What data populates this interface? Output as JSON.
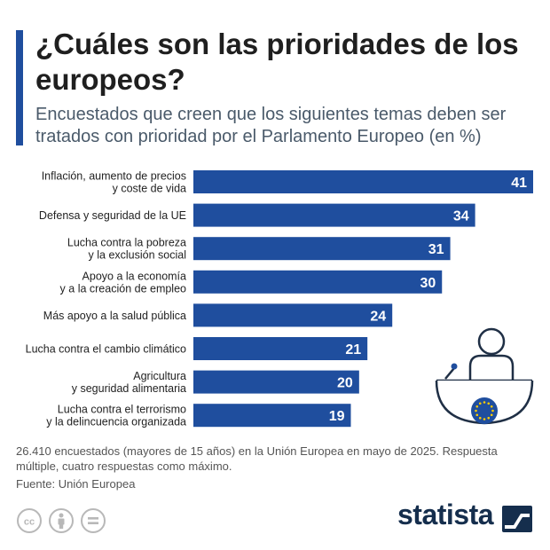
{
  "header": {
    "title": "¿Cuáles son las prioridades de los europeos?",
    "subtitle": "Encuestados que creen que los siguientes temas deben ser tratados con prioridad por el Parlamento Europeo (en %)"
  },
  "chart_data": {
    "type": "bar",
    "orientation": "horizontal",
    "title": "¿Cuáles son las prioridades de los europeos?",
    "xlabel": "",
    "ylabel": "",
    "xlim": [
      0,
      41
    ],
    "categories": [
      "Inflación, aumento de precios\ny coste de vida",
      "Defensa y seguridad de la UE",
      "Lucha contra la pobreza\ny la exclusión social",
      "Apoyo a la economía\ny a la creación de empleo",
      "Más apoyo a la salud pública",
      "Lucha contra el cambio climático",
      "Agricultura\ny seguridad alimentaria",
      "Lucha contra el terrorismo\ny la delincuencia organizada"
    ],
    "values": [
      41,
      34,
      31,
      30,
      24,
      21,
      20,
      19
    ],
    "bar_color": "#1f4e9e"
  },
  "footer": {
    "notes": "26.410 encuestados (mayores de 15 años) en la Unión Europea en mayo de 2025. Respuesta múltiple, cuatro respuestas como máximo.",
    "source": "Fuente: Unión Europea",
    "brand": "statista",
    "license_icons": [
      "creative-commons-icon",
      "attribution-icon",
      "no-derivatives-icon"
    ]
  },
  "colors": {
    "accent": "#1f4e9e",
    "brand": "#152e4d",
    "eu_flag": "#1f4e9e",
    "eu_stars": "#ffcc00"
  }
}
